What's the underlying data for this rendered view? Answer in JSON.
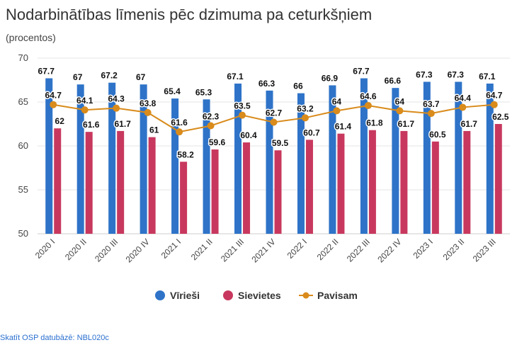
{
  "title": "Nodarbinātības līmenis pēc dzimuma pa ceturkšņiem",
  "subtitle": "(procentos)",
  "source_link": "Skatīt OSP datubāzē: NBL020c",
  "colors": {
    "men": "#2e73c8",
    "women": "#c8385e",
    "total": "#d98b1b",
    "grid": "#e6e6e6"
  },
  "chart_data": {
    "type": "bar",
    "title": "Nodarbinātības līmenis pēc dzimuma pa ceturkšņiem",
    "subtitle": "(procentos)",
    "xlabel": "",
    "ylabel": "",
    "ylim": [
      50,
      70
    ],
    "yticks": [
      50,
      55,
      60,
      65,
      70
    ],
    "grid": true,
    "legend_position": "bottom",
    "categories": [
      "2020 I",
      "2020 II",
      "2020 III",
      "2020 IV",
      "2021 I",
      "2021 II",
      "2021 III",
      "2021 IV",
      "2022 I",
      "2022 II",
      "2022 III",
      "2022 IV",
      "2023 I",
      "2023 II",
      "2023 III"
    ],
    "series": [
      {
        "name": "Vīrieši",
        "type": "bar",
        "values": [
          67.7,
          67,
          67.2,
          67,
          65.4,
          65.3,
          67.1,
          66.3,
          66,
          66.9,
          67.7,
          66.6,
          67.3,
          67.3,
          67.1
        ]
      },
      {
        "name": "Sievietes",
        "type": "bar",
        "values": [
          62,
          61.6,
          61.7,
          61,
          58.2,
          59.6,
          60.4,
          59.5,
          60.7,
          61.4,
          61.8,
          61.7,
          60.5,
          61.7,
          62.5
        ]
      },
      {
        "name": "Pavisam",
        "type": "line",
        "values": [
          64.7,
          64.1,
          64.3,
          63.8,
          61.6,
          62.3,
          63.5,
          62.7,
          63.2,
          64,
          64.6,
          64,
          63.7,
          64.4,
          64.7
        ]
      }
    ]
  }
}
